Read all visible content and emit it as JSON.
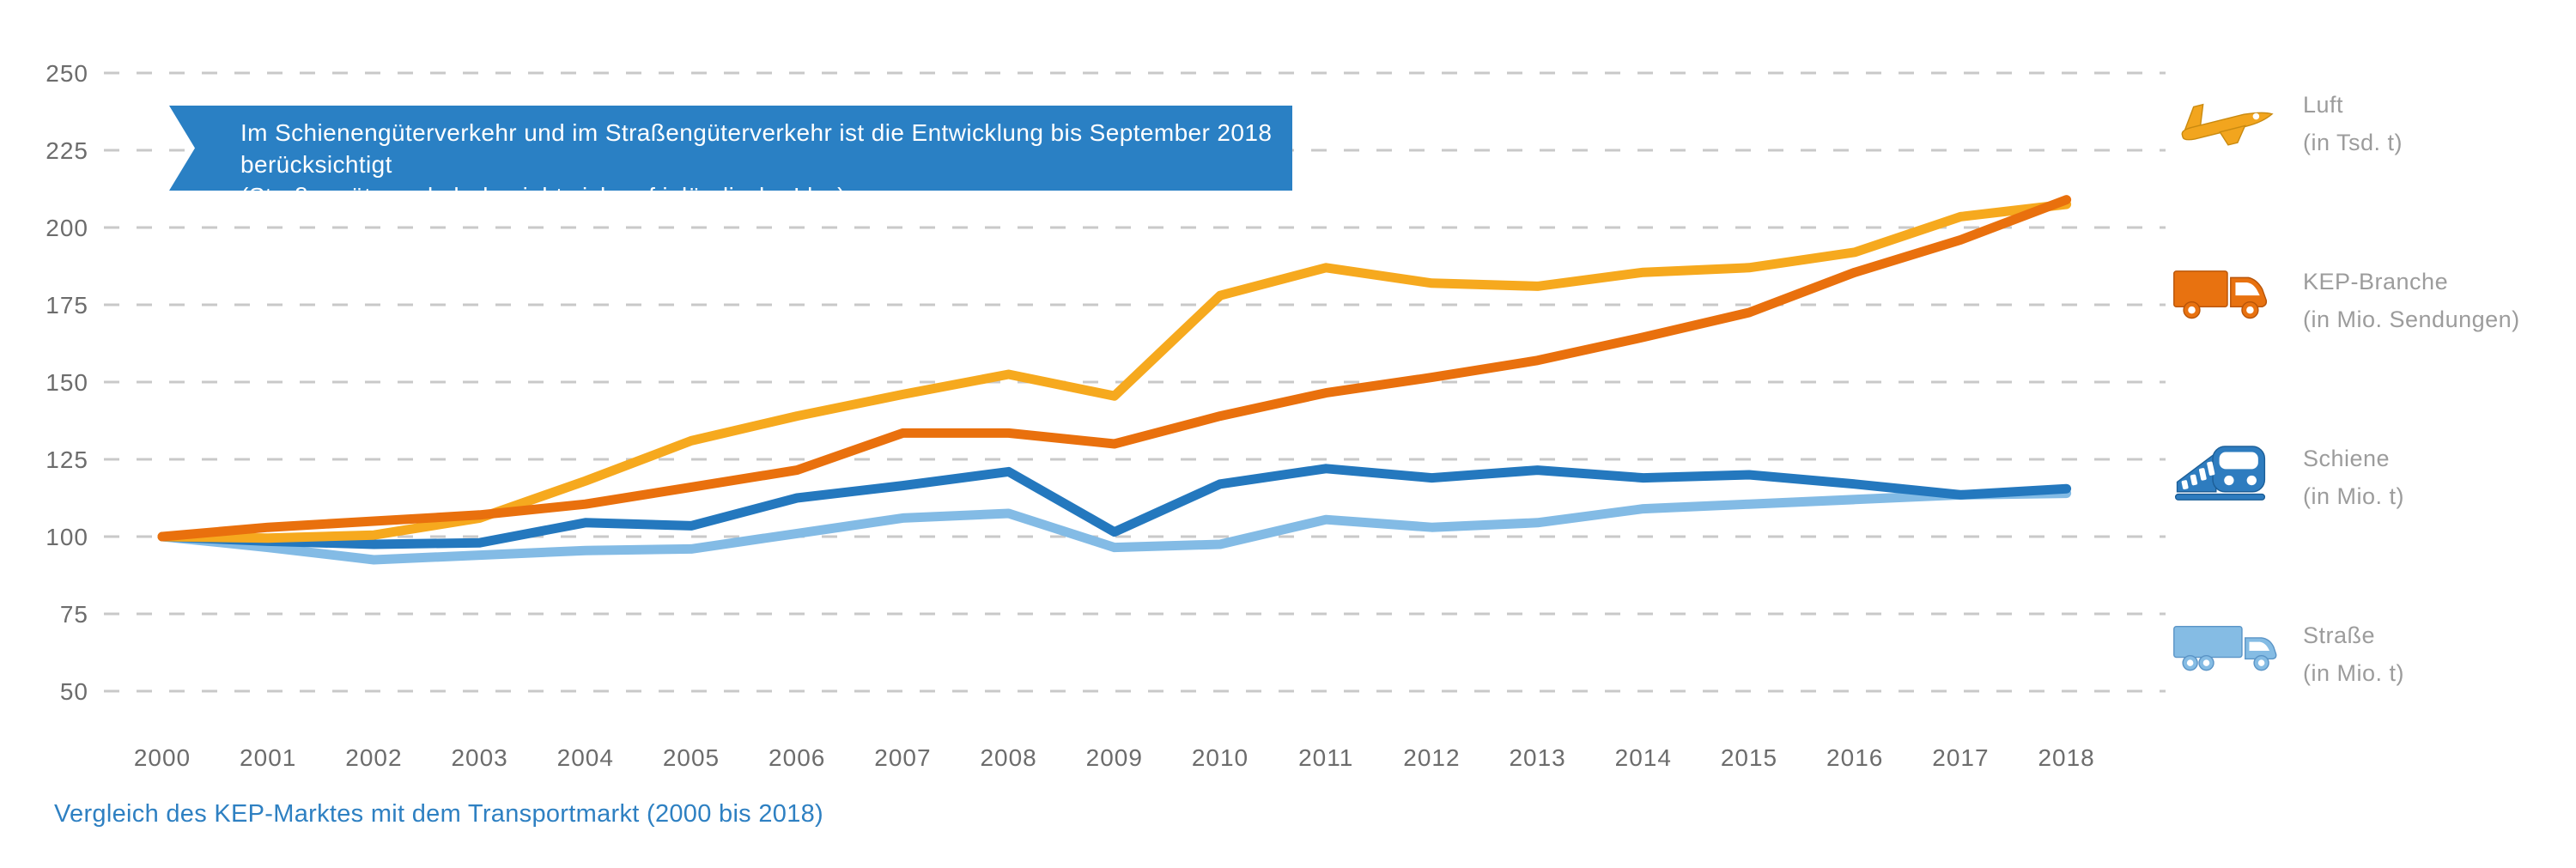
{
  "callout": {
    "line1": "Im Schienengüterverkehr und im Straßengüterverkehr ist die Entwicklung bis September 2018 berücksichtigt",
    "line2": "(Straßengüterverkehr bezieht sich auf inländische Lkw).",
    "background_color": "#2a80c4"
  },
  "caption": "Vergleich des KEP-Marktes mit dem Transportmarkt (2000 bis 2018)",
  "legend": [
    {
      "id": "luft",
      "label": "Luft",
      "unit": "(in Tsd. t)",
      "color": "#F2A51E",
      "icon": "airplane-icon"
    },
    {
      "id": "kep",
      "label": "KEP-Branche",
      "unit": "(in Mio. Sendungen)",
      "color": "#E87210",
      "icon": "delivery-van-icon"
    },
    {
      "id": "schiene",
      "label": "Schiene",
      "unit": "(in Mio. t)",
      "color": "#2E7CBF",
      "icon": "train-icon"
    },
    {
      "id": "strasse",
      "label": "Straße",
      "unit": "(in Mio. t)",
      "color": "#85BCE4",
      "icon": "truck-icon"
    }
  ],
  "chart_data": {
    "type": "line",
    "x": [
      2000,
      2001,
      2002,
      2003,
      2004,
      2005,
      2006,
      2007,
      2008,
      2009,
      2010,
      2011,
      2012,
      2013,
      2014,
      2015,
      2016,
      2017,
      2018
    ],
    "series": [
      {
        "key": "luft",
        "name": "Luft (in Tsd. t)",
        "color": "#F6A91E",
        "values": [
          100,
          99.5,
          100.5,
          106,
          118,
          131,
          139,
          146,
          152.5,
          145.5,
          178,
          187,
          182,
          181,
          185.5,
          187,
          192,
          203.5,
          207.5
        ]
      },
      {
        "key": "kep",
        "name": "KEP-Branche (in Mio. Sendungen)",
        "color": "#E9700D",
        "values": [
          100,
          103,
          105,
          107,
          110.5,
          116,
          121.5,
          133.5,
          133.5,
          130,
          139,
          146.5,
          151.5,
          157,
          164.5,
          172.5,
          185.5,
          196,
          209
        ]
      },
      {
        "key": "schiene",
        "name": "Schiene (in Mio. t)",
        "color": "#2478BE",
        "values": [
          100,
          98.5,
          97.5,
          98,
          104.5,
          103.5,
          112.5,
          116.5,
          121,
          101.5,
          117,
          122,
          119,
          121.5,
          119,
          120,
          117,
          113.5,
          115.5
        ]
      },
      {
        "key": "strasse",
        "name": "Straße (in Mio. t)",
        "color": "#83BBE5",
        "values": [
          100,
          96.5,
          92.5,
          94,
          95.5,
          96,
          101,
          106,
          107.5,
          96.5,
          97.5,
          105.5,
          103,
          104.5,
          109,
          110.5,
          112,
          113.5,
          114
        ]
      }
    ],
    "draw_order": [
      "strasse",
      "schiene",
      "luft",
      "kep"
    ],
    "ylim": [
      50,
      250
    ],
    "yticks": [
      50,
      75,
      100,
      125,
      150,
      175,
      200,
      225,
      250
    ],
    "grid": "horizontal dashed",
    "legend_position": "right"
  }
}
